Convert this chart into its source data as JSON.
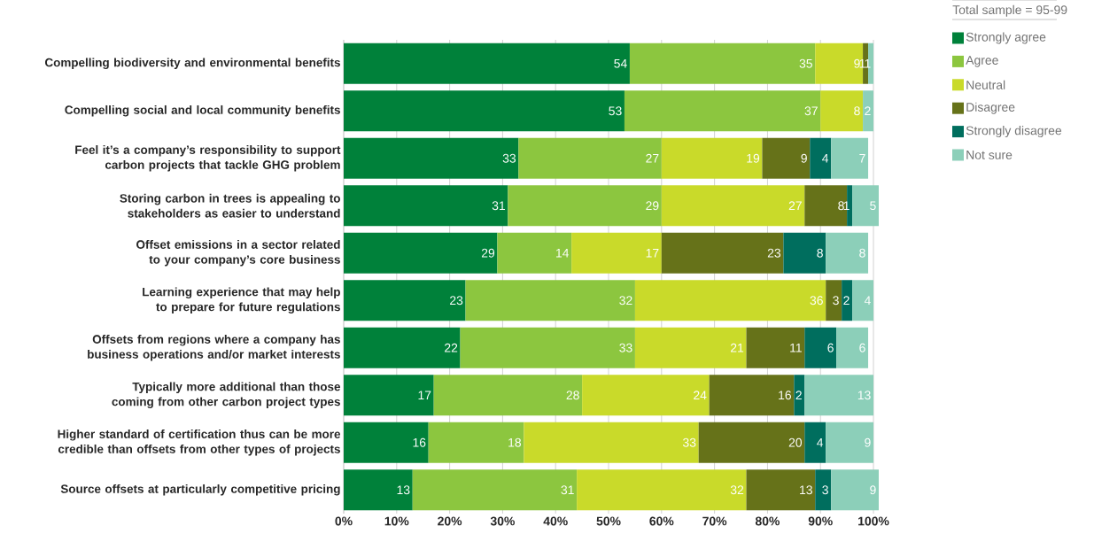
{
  "chart_data": {
    "type": "bar",
    "orientation": "horizontal",
    "stacked": true,
    "data_labels": true,
    "grid": "x",
    "legend": "top right",
    "legend_title": "Total sample = 95-99",
    "categories": [
      "Compelling biodiversity and environmental benefits",
      "Compelling social and local community benefits",
      "Feel it’s a company’s responsibility to support carbon projects that tackle GHG problem",
      "Storing carbon in trees is appealing to stakeholders as easier to understand",
      "Offset emissions in a sector related to your company’s core business",
      "Learning experience that may help to prepare for future regulations",
      "Offsets from regions where a company has business operations and/or market interests",
      "Typically more additional than those coming from other carbon project types",
      "Higher standard of certification thus can be more credible than offsets from other types of projects",
      "Source offsets at particularly competitive pricing"
    ],
    "series": [
      {
        "name": "Strongly agree",
        "color": "#00813a",
        "values": [
          54,
          53,
          33,
          31,
          29,
          23,
          22,
          17,
          16,
          13
        ]
      },
      {
        "name": "Agree",
        "color": "#8cc63f",
        "values": [
          35,
          37,
          27,
          29,
          14,
          32,
          33,
          28,
          18,
          31
        ]
      },
      {
        "name": "Neutral",
        "color": "#c9da2a",
        "values": [
          9,
          8,
          19,
          27,
          17,
          36,
          21,
          24,
          33,
          32
        ]
      },
      {
        "name": "Disagree",
        "color": "#667219",
        "values": [
          1,
          null,
          9,
          8,
          23,
          3,
          11,
          16,
          20,
          13
        ]
      },
      {
        "name": "Strongly disagree",
        "color": "#006e5e",
        "values": [
          null,
          null,
          4,
          1,
          8,
          2,
          6,
          2,
          4,
          3
        ]
      },
      {
        "name": "Not sure",
        "color": "#8ccfb9",
        "values": [
          1,
          2,
          7,
          5,
          8,
          4,
          6,
          13,
          9,
          9
        ]
      }
    ],
    "xlim": [
      0,
      101
    ],
    "xticks": [
      {
        "value": 0,
        "label": "0%"
      },
      {
        "value": 10,
        "label": "10%"
      },
      {
        "value": 20,
        "label": "20%"
      },
      {
        "value": 30,
        "label": "30%"
      },
      {
        "value": 40,
        "label": "40%"
      },
      {
        "value": 50,
        "label": "50%"
      },
      {
        "value": 60,
        "label": "60%"
      },
      {
        "value": 70,
        "label": "70%"
      },
      {
        "value": 80,
        "label": "80%"
      },
      {
        "value": 90,
        "label": "90%"
      },
      {
        "value": 100,
        "label": "100%"
      }
    ]
  }
}
